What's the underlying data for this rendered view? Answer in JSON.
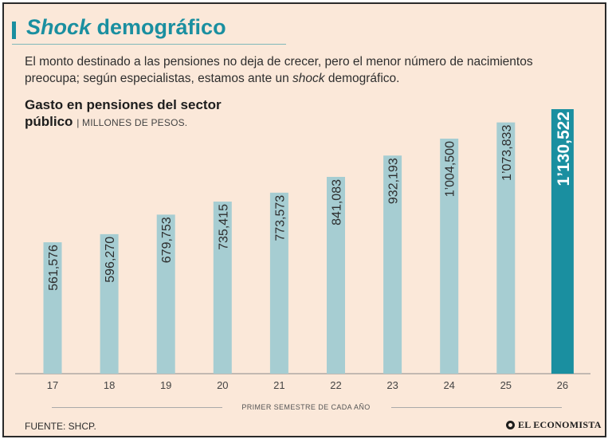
{
  "header": {
    "title_italic": "Shock",
    "title_rest": " demográfico",
    "description_before": "El monto destinado a las pensiones no deja de crecer, pero el menor número de nacimientos preocupa; según especialistas, estamos ante un ",
    "description_italic": "shock",
    "description_after": " demográfico."
  },
  "chart_data": {
    "type": "bar",
    "title_line1": "Gasto en pensiones del sector",
    "title_line2": "público",
    "unit_label": "| MILLONES DE PESOS.",
    "xlabel": "PRIMER SEMESTRE DE CADA AÑO",
    "ylabel": "",
    "categories": [
      "17",
      "18",
      "19",
      "20",
      "21",
      "22",
      "23",
      "24",
      "25",
      "26"
    ],
    "values": [
      561576,
      596270,
      679753,
      735415,
      773573,
      841083,
      932193,
      1004500,
      1073833,
      1130522
    ],
    "value_labels": [
      "561,576",
      "596,270",
      "679,753",
      "735,415",
      "773,573",
      "841,083",
      "932,193",
      "1’004,500",
      "1’073,833",
      "1’130,522"
    ],
    "ylim": [
      0,
      1130522
    ],
    "grid": false,
    "highlight_index": 9,
    "colors": {
      "bar": "#a6cdd2",
      "highlight": "#1a8fa0",
      "label": "#2d2d2d",
      "highlight_label": "#ffffff",
      "axis": "#8a8a8a"
    }
  },
  "footer": {
    "source": "FUENTE: SHCP.",
    "brand": "EL ECONOMISTA",
    "brand_logo_icon": "circle-logo-icon"
  }
}
